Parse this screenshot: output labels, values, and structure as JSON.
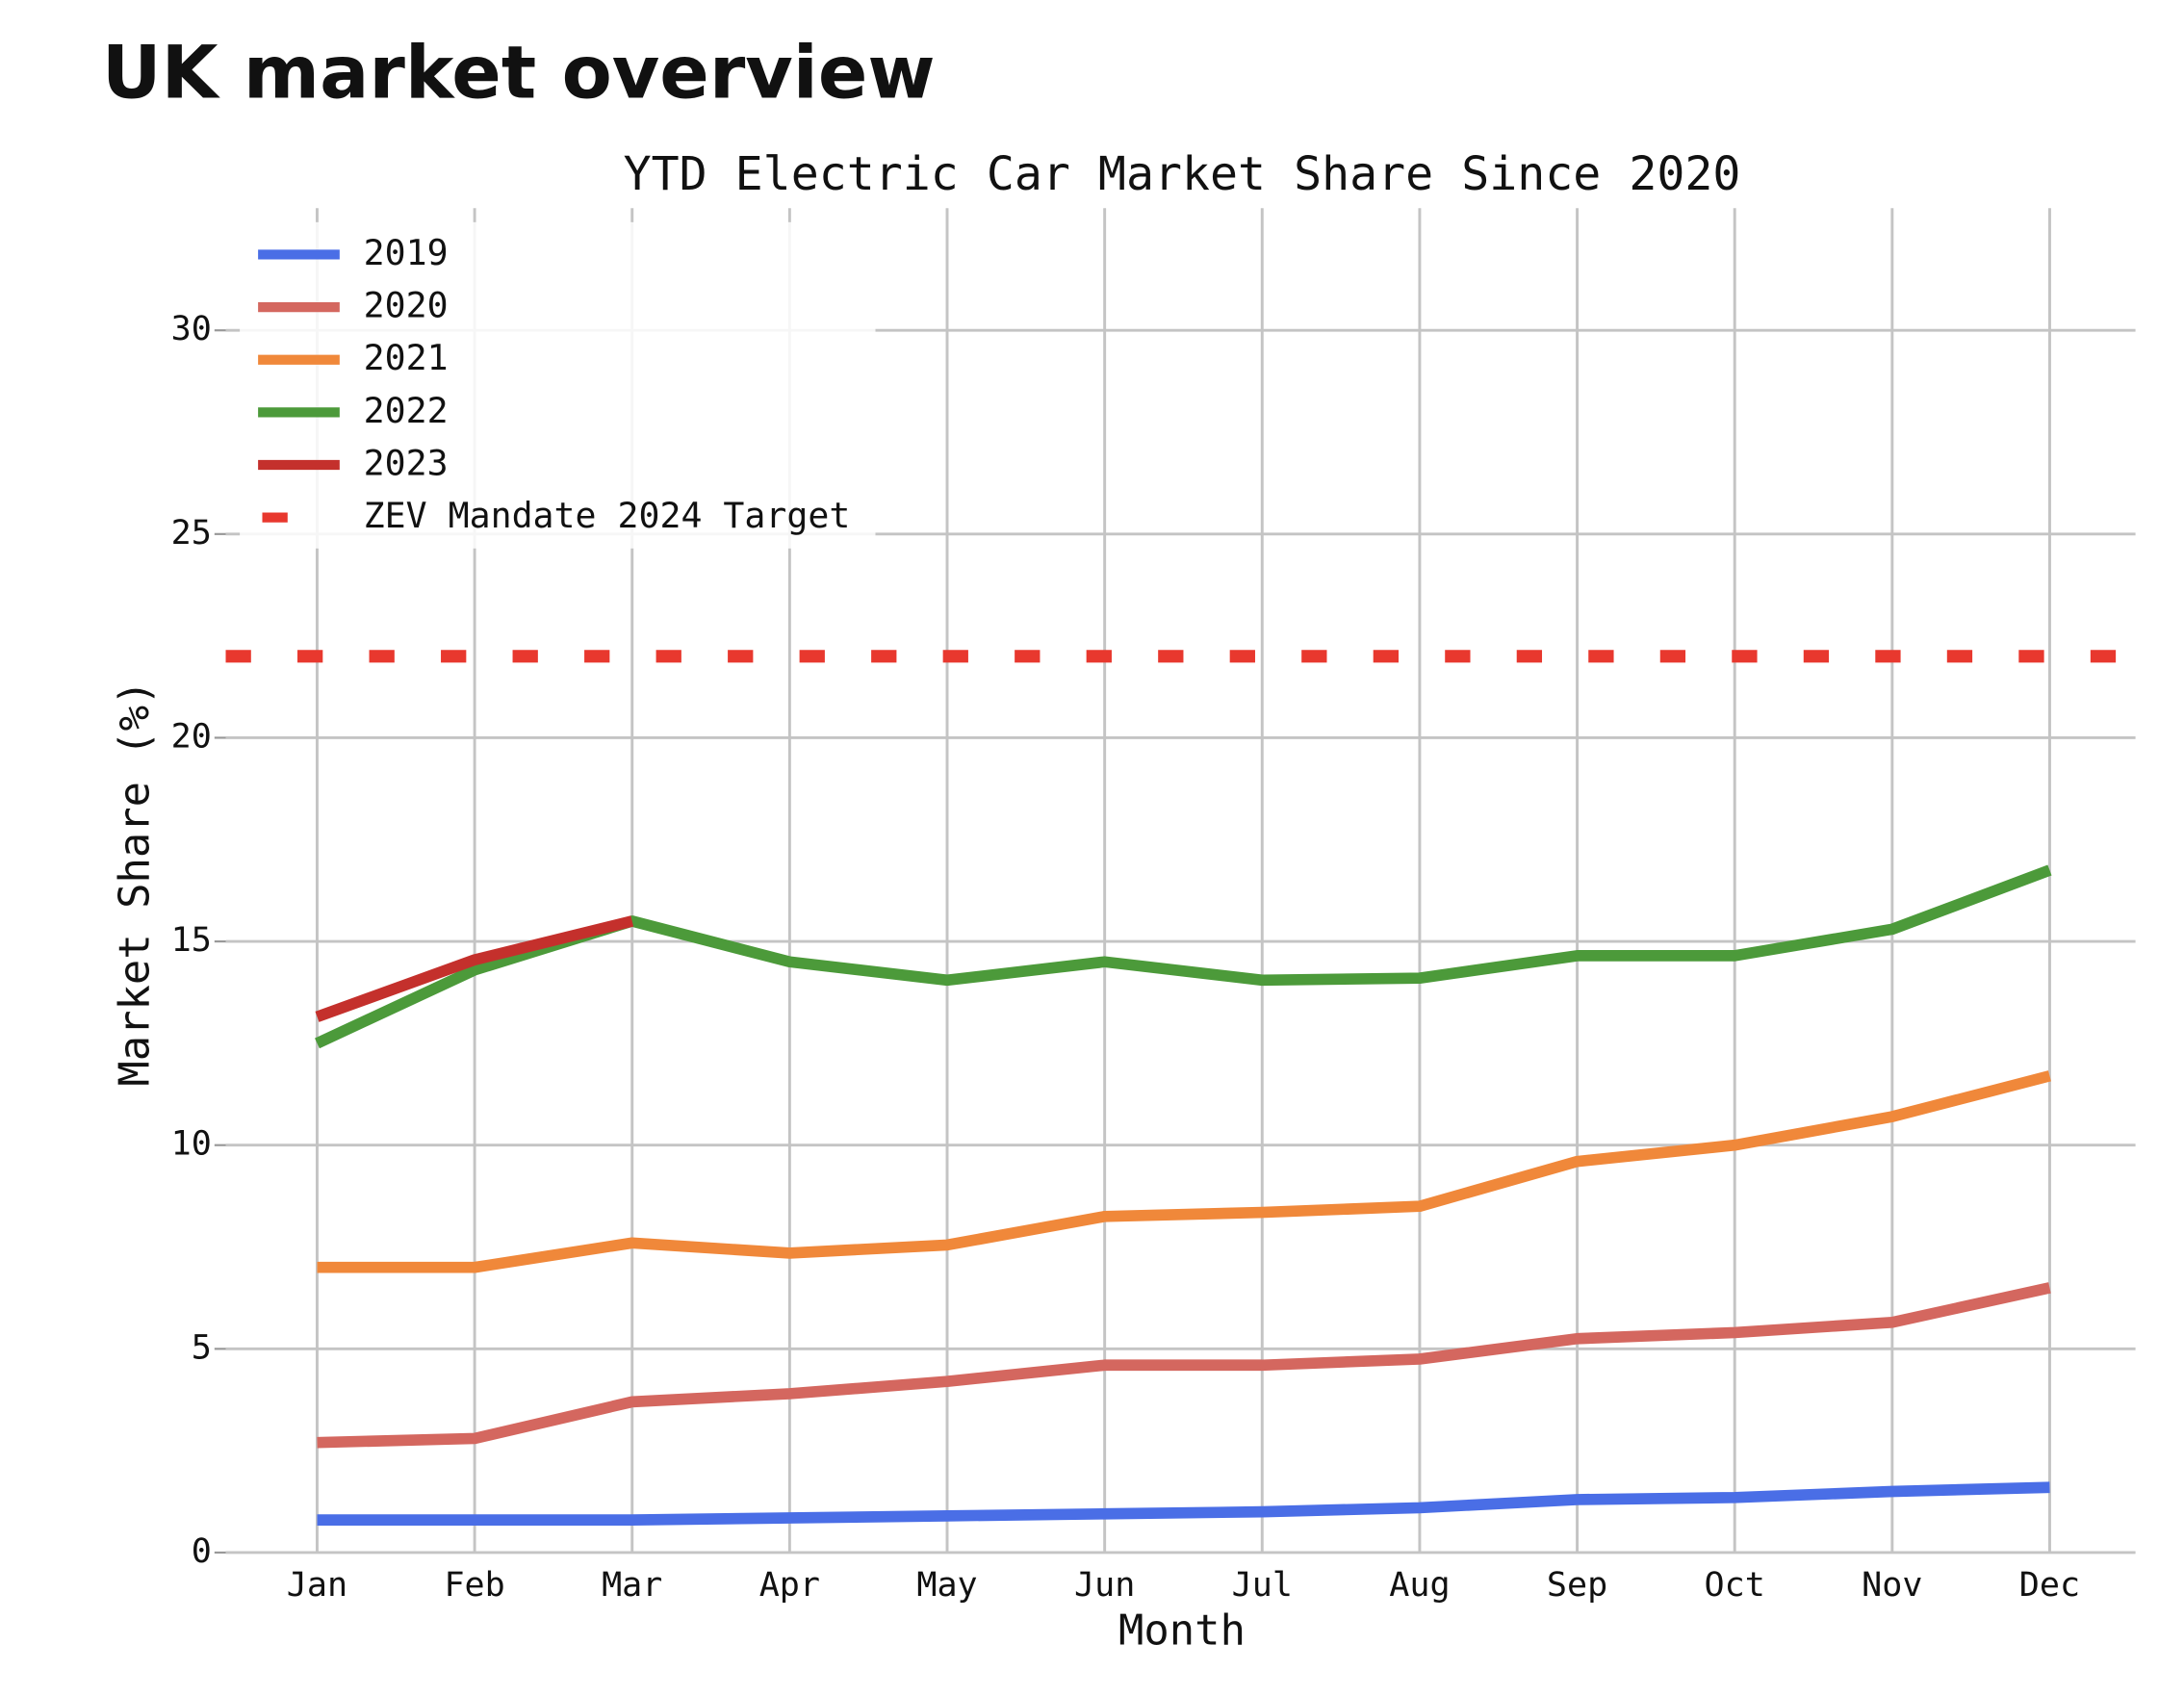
{
  "page_title": "UK market overview",
  "chart_data": {
    "type": "line",
    "title": "YTD Electric Car Market Share Since 2020",
    "x_label": "Month",
    "y_label": "Market Share (%)",
    "categories": [
      "Jan",
      "Feb",
      "Mar",
      "Apr",
      "May",
      "Jun",
      "Jul",
      "Aug",
      "Sep",
      "Oct",
      "Nov",
      "Dec"
    ],
    "series": [
      {
        "name": "2019",
        "color": "#4a6ee6",
        "values": [
          0.8,
          0.8,
          0.8,
          0.85,
          0.9,
          0.95,
          1.0,
          1.1,
          1.3,
          1.35,
          1.5,
          1.6
        ]
      },
      {
        "name": "2020",
        "color": "#d4675f",
        "values": [
          2.7,
          2.8,
          3.7,
          3.9,
          4.2,
          4.6,
          4.6,
          4.75,
          5.25,
          5.4,
          5.65,
          6.5
        ]
      },
      {
        "name": "2021",
        "color": "#f0883a",
        "values": [
          7.0,
          7.0,
          7.6,
          7.35,
          7.55,
          8.25,
          8.35,
          8.5,
          9.6,
          10.0,
          10.7,
          11.7
        ]
      },
      {
        "name": "2022",
        "color": "#4c9a3a",
        "values": [
          12.5,
          14.3,
          15.5,
          14.5,
          14.05,
          14.5,
          14.05,
          14.1,
          14.65,
          14.65,
          15.3,
          16.75
        ]
      },
      {
        "name": "2023",
        "color": "#c4302c",
        "values": [
          13.15,
          14.55,
          15.5,
          null,
          null,
          null,
          null,
          null,
          null,
          null,
          null,
          null
        ]
      }
    ],
    "target": {
      "name": "ZEV Mandate 2024 Target",
      "value": 22,
      "color": "#e8382e"
    },
    "ylim": [
      0,
      33
    ],
    "yticks": [
      0,
      5,
      10,
      15,
      20,
      25,
      30
    ],
    "grid": true,
    "legend": "upper left"
  }
}
